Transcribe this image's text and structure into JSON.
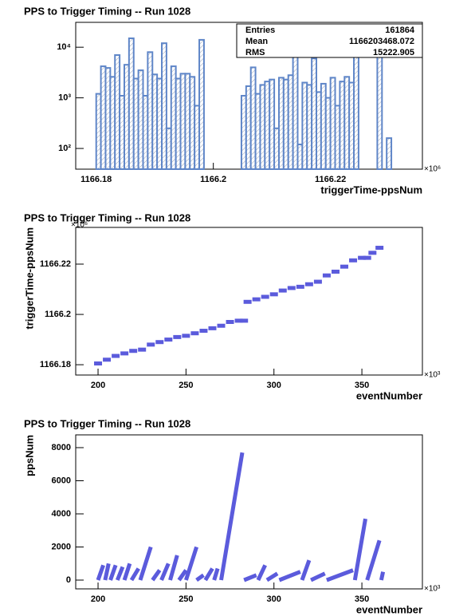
{
  "chart_data": [
    {
      "type": "histogram",
      "title": "PPS to Trigger Timing -- Run 1028",
      "x_label": "triggerTime-ppsNum",
      "x_multiplier": "×10⁶",
      "bins": [
        1166.18,
        1166.1808,
        1166.1816,
        1166.1824,
        1166.1832,
        1166.184,
        1166.1848,
        1166.1856,
        1166.1864,
        1166.1872,
        1166.188,
        1166.1888,
        1166.1896,
        1166.1904,
        1166.1912,
        1166.192,
        1166.1928,
        1166.1936,
        1166.1944,
        1166.1952,
        1166.196,
        1166.1968,
        1166.1976,
        1166.1984,
        1166.1992,
        1166.2,
        1166.2008,
        1166.2016,
        1166.2024,
        1166.2032,
        1166.204,
        1166.2048,
        1166.2056,
        1166.2064,
        1166.2072,
        1166.208,
        1166.2088,
        1166.2096,
        1166.2104,
        1166.2112,
        1166.212,
        1166.2128,
        1166.2136,
        1166.2144,
        1166.2152,
        1166.216,
        1166.2168,
        1166.2176,
        1166.2184,
        1166.2192,
        1166.22,
        1166.2208,
        1166.2216,
        1166.2224,
        1166.2232,
        1166.224,
        1166.2248,
        1166.2256,
        1166.2264,
        1166.2272,
        1166.228,
        1166.2288,
        1166.2296,
        1166.2304
      ],
      "counts": [
        1200,
        4200,
        3900,
        2600,
        7000,
        1100,
        4500,
        15000,
        2400,
        3500,
        1100,
        8000,
        2900,
        2400,
        12000,
        250,
        4200,
        2400,
        3000,
        3000,
        2600,
        700,
        14000,
        0,
        0,
        0,
        0,
        0,
        0,
        0,
        0,
        1100,
        1700,
        4000,
        1200,
        1800,
        2100,
        2300,
        250,
        2500,
        2300,
        2800,
        9000,
        120,
        2000,
        1800,
        6000,
        1300,
        1900,
        1000,
        2500,
        700,
        2100,
        2600,
        2000,
        15000,
        0,
        0,
        0,
        0,
        12000,
        0,
        160
      ],
      "color": "#5f86c8",
      "log_y": true,
      "xlim": [
        1166.1765,
        1166.2357
      ],
      "xticks": [
        1166.18,
        1166.2,
        1166.22
      ],
      "ylim": [
        39,
        31000
      ],
      "yticks": [
        {
          "value": 100,
          "label": "10²"
        },
        {
          "value": 1000,
          "label": "10³"
        },
        {
          "value": 10000,
          "label": "10⁴"
        }
      ],
      "stats": [
        {
          "label": "Entries",
          "value": 161864
        },
        {
          "label": "Mean",
          "value": 1166203468.072
        },
        {
          "label": "RMS",
          "value": 15222.905
        }
      ]
    },
    {
      "type": "scatter",
      "title": "PPS to Trigger Timing -- Run 1028",
      "x_label": "eventNumber",
      "y_label": "triggerTime-ppsNum",
      "x_multiplier": "×10³",
      "y_multiplier": "×10⁶",
      "x": [
        200,
        205,
        210,
        215,
        220,
        225,
        230,
        235,
        240,
        245,
        250,
        255,
        260,
        265,
        270,
        275,
        280,
        283,
        285,
        290,
        295,
        300,
        305,
        310,
        315,
        320,
        325,
        330,
        335,
        340,
        345,
        350,
        353,
        356,
        360
      ],
      "y": [
        1166.1805,
        1166.182,
        1166.1835,
        1166.1845,
        1166.1855,
        1166.186,
        1166.188,
        1166.189,
        1166.19,
        1166.191,
        1166.1915,
        1166.1925,
        1166.1935,
        1166.1945,
        1166.1955,
        1166.197,
        1166.1975,
        1166.1975,
        1166.205,
        1166.206,
        1166.207,
        1166.208,
        1166.2095,
        1166.2105,
        1166.211,
        1166.212,
        1166.213,
        1166.2155,
        1166.217,
        1166.219,
        1166.2215,
        1166.2225,
        1166.2225,
        1166.2245,
        1166.2265
      ],
      "color": "#5b5bdc",
      "log_y": false,
      "xlim": [
        187.3,
        384.4
      ],
      "xticks": [
        200,
        250,
        300,
        350
      ],
      "ylim": [
        1166.1759,
        1166.2346
      ],
      "yticks": [
        1166.18,
        1166.2,
        1166.22
      ]
    },
    {
      "type": "line",
      "title": "PPS to Trigger Timing -- Run 1028",
      "x_label": "eventNumber",
      "y_label": "ppsNum",
      "x_multiplier": "×10³",
      "x": [
        200,
        203,
        null,
        204,
        206,
        null,
        207,
        210,
        null,
        211,
        214,
        null,
        215,
        218,
        null,
        219,
        223,
        null,
        224,
        230,
        null,
        231,
        235,
        null,
        236,
        240,
        null,
        241,
        245,
        null,
        246,
        250,
        null,
        250,
        256,
        null,
        256,
        260,
        null,
        261,
        265,
        null,
        266,
        268,
        null,
        270,
        282,
        null,
        283,
        290,
        null,
        291,
        295,
        null,
        296,
        302,
        null,
        303,
        315,
        null,
        316,
        320,
        null,
        321,
        329,
        null,
        330,
        345,
        null,
        346,
        352,
        null,
        353,
        360,
        null,
        361,
        362
      ],
      "y": [
        0,
        900,
        null,
        0,
        1000,
        null,
        0,
        900,
        null,
        0,
        800,
        null,
        0,
        1000,
        null,
        0,
        700,
        null,
        0,
        2000,
        null,
        0,
        600,
        null,
        0,
        1000,
        null,
        0,
        1500,
        null,
        0,
        600,
        null,
        0,
        2000,
        null,
        0,
        300,
        null,
        0,
        700,
        null,
        0,
        700,
        null,
        0,
        7700,
        null,
        0,
        300,
        null,
        0,
        900,
        null,
        0,
        400,
        null,
        0,
        500,
        null,
        0,
        1200,
        null,
        0,
        400,
        null,
        0,
        600,
        null,
        0,
        3700,
        null,
        0,
        2400,
        null,
        0,
        500
      ],
      "color": "#5b5bdc",
      "log_y": false,
      "xlim": [
        187.3,
        384.4
      ],
      "xticks": [
        200,
        250,
        300,
        350
      ],
      "ylim": [
        -530,
        8771
      ],
      "yticks": [
        0,
        2000,
        4000,
        6000,
        8000
      ]
    }
  ]
}
